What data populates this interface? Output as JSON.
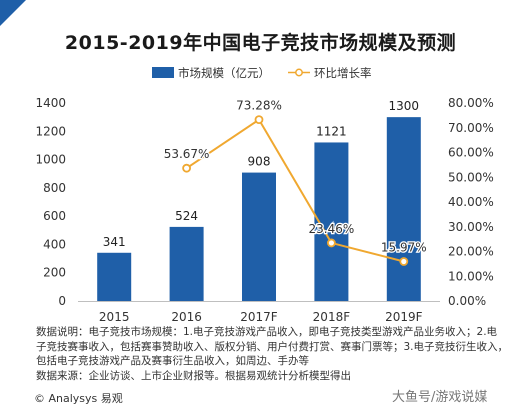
{
  "title": "2015-2019年中国电子竞技市场规模及预测",
  "chart_data": {
    "type": "bar",
    "categories": [
      "2015",
      "2016",
      "2017F",
      "2018F",
      "2019F"
    ],
    "series": [
      {
        "name": "市场规模（亿元）",
        "type": "bar",
        "axis": "left",
        "values": [
          341,
          524,
          908,
          1121,
          1300
        ],
        "labels": [
          "341",
          "524",
          "908",
          "1121",
          "1300"
        ]
      },
      {
        "name": "环比增长率",
        "type": "line",
        "axis": "right",
        "values": [
          null,
          53.67,
          73.28,
          23.46,
          15.97
        ],
        "labels": [
          "",
          "53.67%",
          "73.28%",
          "23.46%",
          "15.97%"
        ]
      }
    ],
    "y_left": {
      "min": 0,
      "max": 1400,
      "ticks": [
        "0",
        "200",
        "400",
        "600",
        "800",
        "1000",
        "1200",
        "1400"
      ]
    },
    "y_right": {
      "min": 0,
      "max": 80,
      "ticks": [
        "0.00%",
        "10.00%",
        "20.00%",
        "30.00%",
        "40.00%",
        "50.00%",
        "60.00%",
        "70.00%",
        "80.00%"
      ]
    },
    "legend_position": "top-center",
    "grid": false,
    "colors": {
      "bar": "#1f5fa8",
      "line": "#f0a830"
    }
  },
  "notes": [
    "数据说明：电子竞技市场规模：1.电子竞技游戏产品收入，即电子竞技类型游戏产品业务收入；2.电",
    "子竞技赛事收入，包括赛事赞助收入、版权分销、用户付费打赏、赛事门票等；3.电子竞技衍生收入，",
    "包括电子竞技游戏产品及赛事衍生品收入，如周边、手办等",
    "数据来源：企业访谈、上市企业财报等。根据易观统计分析模型得出"
  ],
  "footer": {
    "logo": "© Analysys 易观"
  },
  "watermark": "大鱼号/游戏说媒"
}
